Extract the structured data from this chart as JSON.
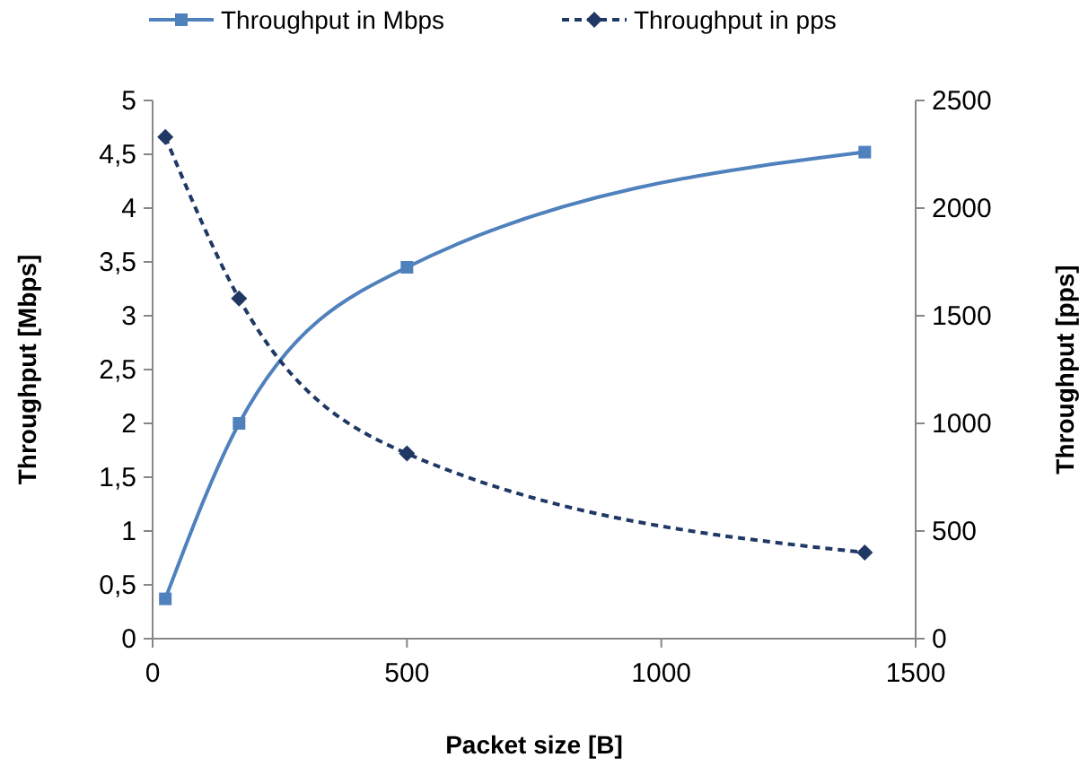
{
  "chart_data": {
    "type": "line",
    "xlabel": "Packet size [B]",
    "ylabel": "Throughput [Mbps]",
    "y2label": "Throughput [pps]",
    "legend": "top",
    "grid": false,
    "xlim": [
      0,
      1500
    ],
    "xticks": [
      0,
      500,
      1000,
      1500
    ],
    "ylim": [
      0,
      5
    ],
    "yticks": [
      0,
      {
        "value": 0.5,
        "label": "0,5"
      },
      1,
      {
        "value": 1.5,
        "label": "1,5"
      },
      2,
      {
        "value": 2.5,
        "label": "2,5"
      },
      3,
      {
        "value": 3.5,
        "label": "3,5"
      },
      4,
      {
        "value": 4.5,
        "label": "4,5"
      },
      5
    ],
    "y2lim": [
      0,
      2500
    ],
    "y2ticks": [
      0,
      500,
      1000,
      1500,
      2000,
      2500
    ],
    "series": [
      {
        "name": "Throughput in Mbps",
        "color": "#4f81bd",
        "x": [
          25,
          170,
          500,
          1400
        ],
        "values": [
          0.37,
          2.0,
          3.45,
          4.52
        ],
        "marker": "square",
        "line_style": "solid"
      },
      {
        "name": "Throughput in pps",
        "color": "#1f3864",
        "x": [
          25,
          170,
          500,
          1400
        ],
        "values": [
          2330,
          1580,
          860,
          400
        ],
        "axis": "y2",
        "marker": "diamond",
        "line_style": "dashed"
      }
    ]
  }
}
